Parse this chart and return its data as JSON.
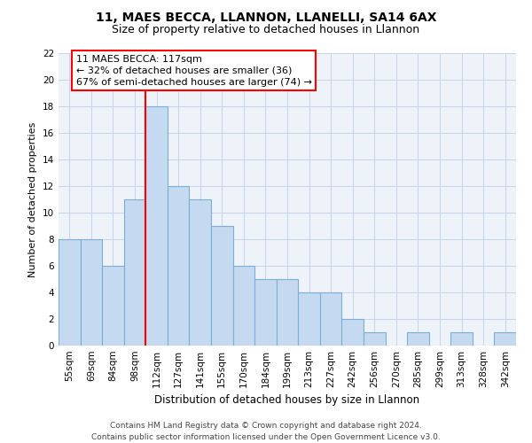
{
  "title1": "11, MAES BECCA, LLANNON, LLANELLI, SA14 6AX",
  "title2": "Size of property relative to detached houses in Llannon",
  "xlabel": "Distribution of detached houses by size in Llannon",
  "ylabel": "Number of detached properties",
  "categories": [
    "55sqm",
    "69sqm",
    "84sqm",
    "98sqm",
    "112sqm",
    "127sqm",
    "141sqm",
    "155sqm",
    "170sqm",
    "184sqm",
    "199sqm",
    "213sqm",
    "227sqm",
    "242sqm",
    "256sqm",
    "270sqm",
    "285sqm",
    "299sqm",
    "313sqm",
    "328sqm",
    "342sqm"
  ],
  "values": [
    8,
    8,
    6,
    11,
    18,
    12,
    11,
    9,
    6,
    5,
    5,
    4,
    4,
    2,
    1,
    0,
    1,
    0,
    1,
    0,
    1
  ],
  "bar_color": "#c5d9f0",
  "bar_edge_color": "#7bafd4",
  "red_line_index": 4,
  "ylim": [
    0,
    22
  ],
  "yticks": [
    0,
    2,
    4,
    6,
    8,
    10,
    12,
    14,
    16,
    18,
    20,
    22
  ],
  "annotation_title": "11 MAES BECCA: 117sqm",
  "annotation_line1": "← 32% of detached houses are smaller (36)",
  "annotation_line2": "67% of semi-detached houses are larger (74) →",
  "footer1": "Contains HM Land Registry data © Crown copyright and database right 2024.",
  "footer2": "Contains public sector information licensed under the Open Government Licence v3.0.",
  "background_color": "#eef2f9",
  "grid_color": "#c8d4e8",
  "title1_fontsize": 10,
  "title2_fontsize": 9,
  "xlabel_fontsize": 8.5,
  "ylabel_fontsize": 8,
  "tick_fontsize": 7.5,
  "footer_fontsize": 6.5,
  "ann_fontsize": 8
}
